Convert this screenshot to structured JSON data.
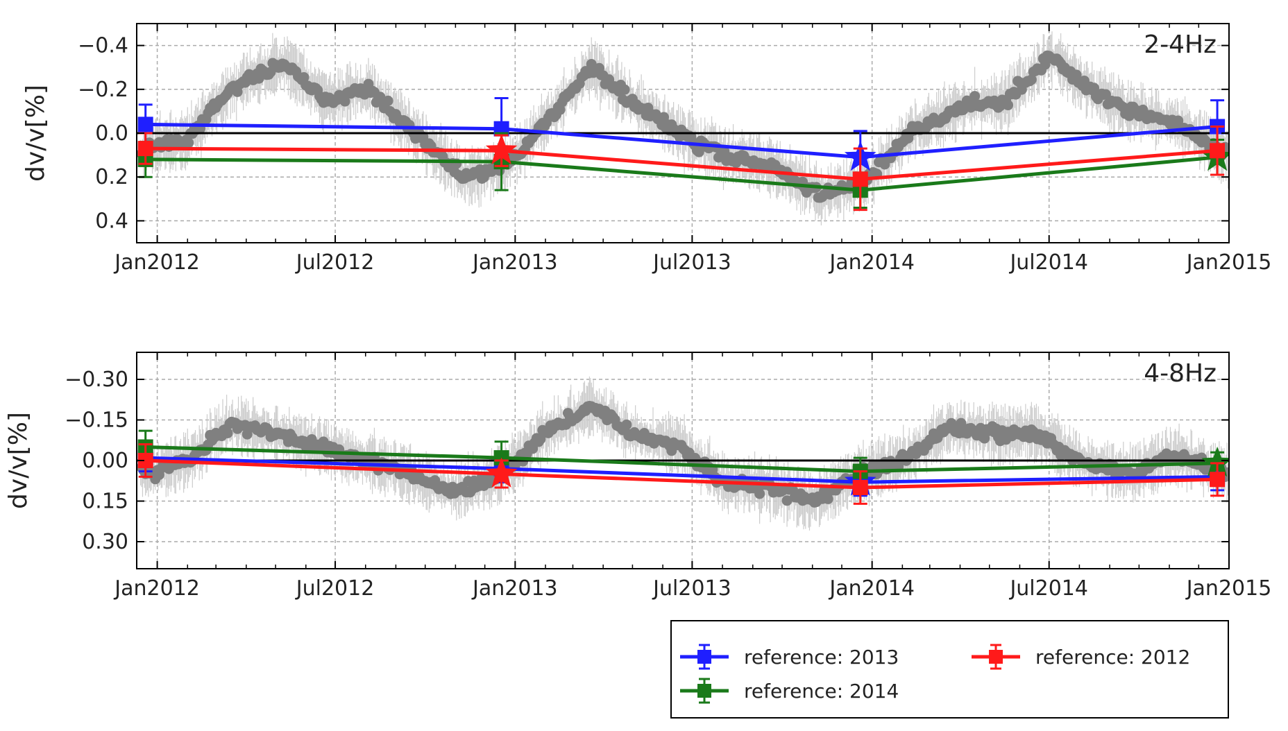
{
  "chart_data": [
    {
      "type": "scatter",
      "panel_label": "2-4Hz",
      "ylabel": "dv/v[%]",
      "y_inverted": true,
      "ylim": [
        -0.5,
        0.5
      ],
      "yticks": [
        -0.4,
        -0.2,
        0.0,
        0.2,
        0.4
      ],
      "ytick_labels": [
        "−0.4",
        "−0.2",
        "0.0",
        "0.2",
        "0.4"
      ],
      "xlim": [
        "2011-12-11",
        "2015-01-01"
      ],
      "xticks": [
        "2012-01-01",
        "2012-07-01",
        "2013-01-01",
        "2013-07-01",
        "2014-01-01",
        "2014-07-01",
        "2015-01-01"
      ],
      "xtick_labels": [
        "Jan2012",
        "Jul2012",
        "Jan2013",
        "Jul2013",
        "Jan2014",
        "Jul2014",
        "Jan2015"
      ],
      "grid": true,
      "zero_line": 0,
      "background_series": {
        "color": "#808080",
        "errorbar_color": "#cccccc",
        "x_start": "2011-12-15",
        "x_end": "2014-12-31",
        "seasonal_trend": [
          {
            "x": "2011-12-15",
            "y": 0.07
          },
          {
            "x": "2012-02-01",
            "y": 0.03
          },
          {
            "x": "2012-03-15",
            "y": -0.2
          },
          {
            "x": "2012-05-10",
            "y": -0.32
          },
          {
            "x": "2012-06-20",
            "y": -0.15
          },
          {
            "x": "2012-08-05",
            "y": -0.2
          },
          {
            "x": "2012-09-20",
            "y": 0.0
          },
          {
            "x": "2012-11-10",
            "y": 0.2
          },
          {
            "x": "2012-12-20",
            "y": 0.15
          },
          {
            "x": "2013-02-01",
            "y": -0.05
          },
          {
            "x": "2013-03-20",
            "y": -0.3
          },
          {
            "x": "2013-05-01",
            "y": -0.15
          },
          {
            "x": "2013-06-15",
            "y": 0.0
          },
          {
            "x": "2013-08-01",
            "y": 0.1
          },
          {
            "x": "2013-09-20",
            "y": 0.15
          },
          {
            "x": "2013-11-10",
            "y": 0.28
          },
          {
            "x": "2013-12-25",
            "y": 0.22
          },
          {
            "x": "2014-02-10",
            "y": 0.0
          },
          {
            "x": "2014-04-01",
            "y": -0.12
          },
          {
            "x": "2014-05-20",
            "y": -0.15
          },
          {
            "x": "2014-07-01",
            "y": -0.35
          },
          {
            "x": "2014-08-10",
            "y": -0.2
          },
          {
            "x": "2014-09-20",
            "y": -0.1
          },
          {
            "x": "2014-11-10",
            "y": -0.05
          },
          {
            "x": "2014-12-31",
            "y": 0.1
          }
        ]
      },
      "series": [
        {
          "name": "reference: 2013",
          "color": "#1f1fff",
          "x": [
            "2011-12-20",
            "2012-12-18",
            "2013-12-20",
            "2014-12-20"
          ],
          "y": [
            -0.04,
            -0.02,
            0.11,
            -0.03
          ],
          "yerr": [
            0.09,
            0.14,
            0.12,
            0.12
          ],
          "star_point": "2013-12-20"
        },
        {
          "name": "reference: 2014",
          "color": "#1a7a1a",
          "x": [
            "2011-12-20",
            "2012-12-18",
            "2013-12-20",
            "2014-12-20"
          ],
          "y": [
            0.12,
            0.13,
            0.26,
            0.11
          ],
          "yerr": [
            0.08,
            0.13,
            0.08,
            0.08
          ],
          "star_point": "2014-12-20"
        },
        {
          "name": "reference: 2012",
          "color": "#ff1a1a",
          "x": [
            "2011-12-20",
            "2012-12-18",
            "2013-12-20",
            "2014-12-20"
          ],
          "y": [
            0.07,
            0.08,
            0.21,
            0.08
          ],
          "yerr": [
            0.07,
            0.07,
            0.14,
            0.11
          ],
          "star_point": "2012-12-18"
        }
      ]
    },
    {
      "type": "scatter",
      "panel_label": "4-8Hz",
      "ylabel": "dv/v[%]",
      "y_inverted": true,
      "ylim": [
        -0.4,
        0.4
      ],
      "yticks": [
        -0.3,
        -0.15,
        0.0,
        0.15,
        0.3
      ],
      "ytick_labels": [
        "−0.30",
        "−0.15",
        "0.00",
        "0.15",
        "0.30"
      ],
      "xlim": [
        "2011-12-11",
        "2015-01-01"
      ],
      "xticks": [
        "2012-01-01",
        "2012-07-01",
        "2013-01-01",
        "2013-07-01",
        "2014-01-01",
        "2014-07-01",
        "2015-01-01"
      ],
      "xtick_labels": [
        "Jan2012",
        "Jul2012",
        "Jan2013",
        "Jul2013",
        "Jan2014",
        "Jul2014",
        "Jan2015"
      ],
      "grid": true,
      "zero_line": 0,
      "background_series": {
        "color": "#808080",
        "errorbar_color": "#cccccc",
        "x_start": "2011-12-15",
        "x_end": "2014-12-31",
        "seasonal_trend": [
          {
            "x": "2011-12-15",
            "y": 0.05
          },
          {
            "x": "2012-02-01",
            "y": 0.0
          },
          {
            "x": "2012-03-15",
            "y": -0.13
          },
          {
            "x": "2012-05-01",
            "y": -0.1
          },
          {
            "x": "2012-06-15",
            "y": -0.05
          },
          {
            "x": "2012-08-01",
            "y": 0.0
          },
          {
            "x": "2012-09-15",
            "y": 0.05
          },
          {
            "x": "2012-11-01",
            "y": 0.12
          },
          {
            "x": "2012-12-20",
            "y": 0.05
          },
          {
            "x": "2013-02-01",
            "y": -0.1
          },
          {
            "x": "2013-03-20",
            "y": -0.2
          },
          {
            "x": "2013-05-01",
            "y": -0.1
          },
          {
            "x": "2013-06-20",
            "y": -0.05
          },
          {
            "x": "2013-08-01",
            "y": 0.08
          },
          {
            "x": "2013-09-20",
            "y": 0.1
          },
          {
            "x": "2013-11-01",
            "y": 0.15
          },
          {
            "x": "2013-12-20",
            "y": 0.05
          },
          {
            "x": "2014-02-01",
            "y": 0.0
          },
          {
            "x": "2014-03-20",
            "y": -0.12
          },
          {
            "x": "2014-05-01",
            "y": -0.1
          },
          {
            "x": "2014-06-15",
            "y": -0.1
          },
          {
            "x": "2014-08-01",
            "y": 0.0
          },
          {
            "x": "2014-09-20",
            "y": 0.05
          },
          {
            "x": "2014-11-10",
            "y": -0.02
          },
          {
            "x": "2014-12-31",
            "y": 0.05
          }
        ]
      },
      "series": [
        {
          "name": "reference: 2013",
          "color": "#1f1fff",
          "x": [
            "2011-12-20",
            "2012-12-18",
            "2013-12-20",
            "2014-12-20"
          ],
          "y": [
            -0.01,
            0.03,
            0.08,
            0.06
          ],
          "yerr": [
            0.05,
            0.05,
            0.05,
            0.05
          ],
          "star_point": "2013-12-20"
        },
        {
          "name": "reference: 2014",
          "color": "#1a7a1a",
          "x": [
            "2011-12-20",
            "2012-12-18",
            "2013-12-20",
            "2014-12-20"
          ],
          "y": [
            -0.05,
            -0.01,
            0.04,
            0.01
          ],
          "yerr": [
            0.06,
            0.06,
            0.05,
            0.04
          ],
          "star_point": "2014-12-20"
        },
        {
          "name": "reference: 2012",
          "color": "#ff1a1a",
          "x": [
            "2011-12-20",
            "2012-12-18",
            "2013-12-20",
            "2014-12-20"
          ],
          "y": [
            0.0,
            0.05,
            0.1,
            0.07
          ],
          "yerr": [
            0.06,
            0.05,
            0.06,
            0.06
          ],
          "star_point": "2012-12-18"
        }
      ]
    }
  ],
  "legend": {
    "placement": "bottom-right",
    "entries": [
      {
        "label": "reference: 2013",
        "color": "#1f1fff"
      },
      {
        "label": "reference: 2012",
        "color": "#ff1a1a"
      },
      {
        "label": "reference: 2014",
        "color": "#1a7a1a"
      }
    ]
  }
}
